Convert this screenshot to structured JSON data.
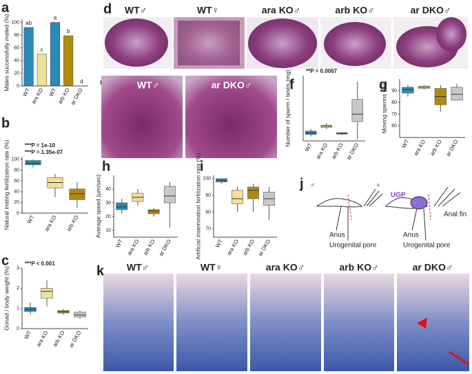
{
  "chart_data": [
    {
      "type": "bar",
      "panel": "a",
      "y_label": "Males successfully mated (%)",
      "categories": [
        "WT",
        "ara KO",
        "WT",
        "arb KO",
        "ar DKO"
      ],
      "values": [
        92,
        50,
        100,
        79,
        0
      ],
      "colors": [
        "#2a8ab8",
        "#f0e09a",
        "#2a8ab8",
        "#b08a10",
        "#c8c8c8"
      ],
      "letters": [
        "ab",
        "c",
        "a",
        "b",
        "d"
      ],
      "ylim": [
        0,
        105
      ],
      "yticks": [
        0,
        20,
        40,
        60,
        80,
        100
      ]
    },
    {
      "type": "box",
      "panel": "b",
      "y_label": "Natural mating fertilization rate (%)",
      "categories": [
        "WT",
        "ara KO",
        "arb KO"
      ],
      "values": [
        [
          85,
          90,
          93,
          98,
          100
        ],
        [
          30,
          47,
          57,
          66,
          73
        ],
        [
          10,
          25,
          36,
          45,
          58
        ]
      ],
      "colors": [
        "#2a8ab8",
        "#f0e09a",
        "#b08a10"
      ],
      "annotations": [
        "***P = 1e-10",
        "***P = 1.35e-07"
      ],
      "ylim": [
        0,
        105
      ],
      "yticks": [
        0,
        20,
        40,
        60,
        80,
        100
      ]
    },
    {
      "type": "box",
      "panel": "c",
      "y_label": "Gonad / body weight (%)",
      "categories": [
        "WT",
        "ara KO",
        "arb KO",
        "ar DKO"
      ],
      "values": [
        [
          0.7,
          0.85,
          0.95,
          1.05,
          1.3
        ],
        [
          1.1,
          1.5,
          1.85,
          2.0,
          2.4
        ],
        [
          0.7,
          0.78,
          0.83,
          0.9,
          0.97
        ],
        [
          0.5,
          0.58,
          0.68,
          0.82,
          0.9
        ]
      ],
      "colors": [
        "#2a8ab8",
        "#f0e09a",
        "#b08a10",
        "#c8c8c8"
      ],
      "annotations": [
        "***P < 0.001"
      ],
      "ylim": [
        0,
        3
      ],
      "yticks": [
        0,
        1,
        2,
        3
      ]
    },
    {
      "type": "box",
      "panel": "f",
      "y_label": "Number of sperm / testis (mg)",
      "categories": [
        "WT",
        "ara KO",
        "arb KO",
        "ar DKO"
      ],
      "values": [
        [
          1.5,
          2.2,
          2.7,
          3.3,
          4
        ],
        [
          4,
          4.5,
          5,
          5.3,
          6
        ],
        [
          2,
          2.3,
          2.5,
          2.8,
          3
        ],
        [
          0.5,
          6.5,
          9,
          14,
          20
        ]
      ],
      "colors": [
        "#2a8ab8",
        "#f0e09a",
        "#b08a10",
        "#c8c8c8"
      ],
      "annotations": [
        "**P = 0.0067"
      ],
      "ylim": [
        0,
        22
      ],
      "yticks": []
    },
    {
      "type": "box",
      "panel": "g",
      "y_label": "Moving sperms (%)",
      "categories": [
        "WT",
        "ara KO",
        "arb KO",
        "ar DKO"
      ],
      "values": [
        [
          85,
          88,
          91,
          93,
          95
        ],
        [
          91,
          92,
          93,
          94,
          95
        ],
        [
          72,
          78,
          85,
          92,
          95
        ],
        [
          82,
          82,
          87,
          93,
          96
        ]
      ],
      "colors": [
        "#2a8ab8",
        "#f0e09a",
        "#b08a10",
        "#c8c8c8"
      ],
      "ylim": [
        50,
        100
      ],
      "yticks": [
        60,
        70,
        80,
        90
      ]
    },
    {
      "type": "box",
      "panel": "h",
      "y_label": "Average speed (μm/sec)",
      "categories": [
        "WT",
        "ara KO",
        "arb KO",
        "ar DKO"
      ],
      "values": [
        [
          22,
          25,
          27,
          30,
          33
        ],
        [
          28,
          31,
          34,
          37,
          40
        ],
        [
          20,
          22,
          24,
          25,
          26
        ],
        [
          12,
          30,
          35,
          42,
          45
        ]
      ],
      "colors": [
        "#2a8ab8",
        "#f0e09a",
        "#b08a10",
        "#c8c8c8"
      ],
      "ylim": [
        5,
        50
      ],
      "yticks": [
        10,
        20,
        30,
        40
      ]
    },
    {
      "type": "box",
      "panel": "i",
      "y_label": "Artificial insemination fertilization rata (%)",
      "categories": [
        "WT",
        "ara KO",
        "arb KO",
        "ar DKO"
      ],
      "values": [
        [
          97,
          98,
          99,
          100,
          100
        ],
        [
          80,
          85,
          88,
          93,
          95
        ],
        [
          80,
          88,
          93,
          95,
          97
        ],
        [
          75,
          84,
          88,
          92,
          95
        ]
      ],
      "colors": [
        "#2a8ab8",
        "#f0e09a",
        "#b08a10",
        "#c8c8c8"
      ],
      "ylim": [
        65,
        102
      ],
      "yticks": [
        70,
        80,
        90,
        100
      ]
    }
  ],
  "panels": {
    "d": {
      "panel": "d",
      "labels": [
        "WT♂",
        "WT♀",
        "ara KO♂",
        "arb KO♂",
        "ar DKO♂"
      ]
    },
    "e": {
      "panel": "e",
      "labels": [
        "WT♂",
        "ar DKO♂"
      ]
    },
    "j": {
      "panel": "j",
      "labels": [
        "♂",
        "♀",
        "UGP",
        "Anal fin",
        "Anus",
        "Urogenital pore",
        "Anus",
        "Urogenital pore"
      ]
    },
    "k": {
      "panel": "k",
      "labels": [
        "WT♂",
        "WT♀",
        "ara KO♂",
        "arb KO♂",
        "ar DKO♂"
      ]
    }
  }
}
